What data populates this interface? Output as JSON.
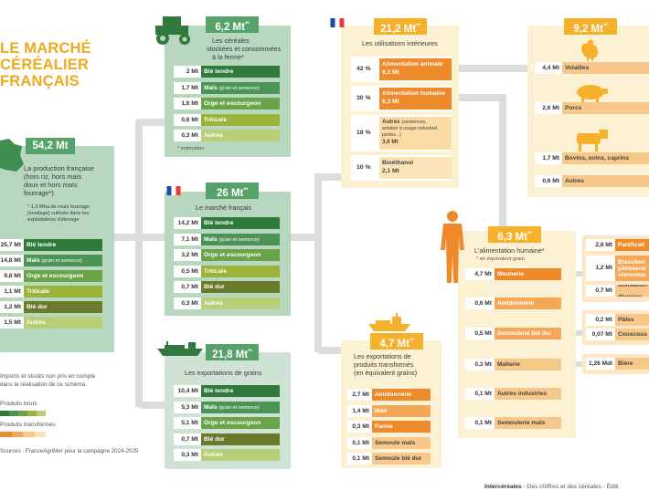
{
  "title": [
    "LE MARCHÉ",
    "CÉRÉALIER",
    "FRANÇAIS"
  ],
  "production": {
    "amount": "54,2 Mt",
    "desc": [
      "La production française",
      "(hors riz, hors maïs",
      "doux et hors maïs",
      "fourrage*)"
    ],
    "note": [
      "* 1,3 Mha de maïs fourrage",
      "(ensilage) cultivés dans les",
      "exploitations d'élevage"
    ],
    "rows": [
      {
        "value": "25,7 Mt",
        "label": "Blé tendre",
        "extra": ""
      },
      {
        "value": "14,8 Mt",
        "label": "Maïs",
        "extra": "(grain et semence)"
      },
      {
        "value": "9,8 Mt",
        "label": "Orge et escourgeon",
        "extra": ""
      },
      {
        "value": "1,1 Mt",
        "label": "Triticale",
        "extra": ""
      },
      {
        "value": "1,2 Mt",
        "label": "Blé dur",
        "extra": ""
      },
      {
        "value": "1,5 Mt",
        "label": "Autres",
        "extra": ""
      }
    ]
  },
  "legend": {
    "note": [
      "Imports et stocks non pris en compte",
      "dans la réalisation de ce schéma."
    ],
    "raw": "Produits bruts",
    "processed": "Produits transformés",
    "source": "Sources : FranceAgriMer pour la campagne 2024-2025"
  },
  "farm": {
    "amount": "6,2 Mt",
    "stars": "**",
    "desc": [
      "Les céréales",
      "stockées et consommées",
      "à la ferme*"
    ],
    "rows": [
      {
        "value": "2 Mt",
        "label": "Blé tendre",
        "extra": ""
      },
      {
        "value": "1,7 Mt",
        "label": "Maïs",
        "extra": "(grain et semence)"
      },
      {
        "value": "1,6 Mt",
        "label": "Orge et escourgeon",
        "extra": ""
      },
      {
        "value": "0,6 Mt",
        "label": "Triticale",
        "extra": ""
      },
      {
        "value": "0,3 Mt",
        "label": "Autres",
        "extra": ""
      }
    ],
    "note": "* estimation"
  },
  "market": {
    "amount": "26 Mt",
    "stars": "**",
    "desc": "Le marché français",
    "rows": [
      {
        "value": "14,2 Mt",
        "label": "Blé tendre",
        "extra": ""
      },
      {
        "value": "7,1 Mt",
        "label": "Maïs",
        "extra": "(grain et semence)"
      },
      {
        "value": "3,2 Mt",
        "label": "Orge et escourgeon",
        "extra": ""
      },
      {
        "value": "0,5 Mt",
        "label": "Triticale",
        "extra": ""
      },
      {
        "value": "0,7 Mt",
        "label": "Blé dur",
        "extra": ""
      },
      {
        "value": "0,3 Mt",
        "label": "Autres",
        "extra": ""
      }
    ]
  },
  "exports": {
    "amount": "21,8 Mt",
    "stars": "**",
    "desc": "Les exportations de grains",
    "rows": [
      {
        "value": "10,4 Mt",
        "label": "Blé tendre",
        "extra": ""
      },
      {
        "value": "5,3 Mt",
        "label": "Maïs",
        "extra": "(grain et semence)"
      },
      {
        "value": "5,1 Mt",
        "label": "Orge et escourgeon",
        "extra": ""
      },
      {
        "value": "0,7 Mt",
        "label": "Blé dur",
        "extra": ""
      },
      {
        "value": "0,3 Mt",
        "label": "Autres",
        "extra": ""
      }
    ]
  },
  "internal": {
    "amount": "21,2 Mt",
    "stars": "**",
    "desc": "Les utilisations intérieures",
    "rows": [
      {
        "pct": "42 %",
        "label": "Alimentation animale",
        "value": "9,2 Mt"
      },
      {
        "pct": "30 %",
        "label": "Alimentation humaine",
        "value": "6,3 Mt"
      },
      {
        "pct": "18 %",
        "label": "Autres",
        "extra": [
          "(semences,",
          "amidon à usage industriel,",
          "pertes...)"
        ],
        "value": "3,6 Mt"
      },
      {
        "pct": "10 %",
        "label": "Bioéthanol",
        "value": "2,1 Mt"
      }
    ]
  },
  "animal": {
    "amount": "9,2 Mt",
    "stars": "**",
    "rows": [
      {
        "value": "4,4 Mt",
        "label": "Volailles"
      },
      {
        "value": "2,6 Mt",
        "label": "Porcs"
      },
      {
        "value": "1,7 Mt",
        "label": "Bovins, ovins, caprins"
      },
      {
        "value": "0,6 Mt",
        "label": "Autres"
      }
    ]
  },
  "human": {
    "amount": "6,3 Mt",
    "stars": "**",
    "desc": "L'alimentation humaine*",
    "note": "* en équivalent grain",
    "rows": [
      {
        "value": "4,7 Mt",
        "label": "Meunerie"
      },
      {
        "value": "0,6 Mt",
        "label": "Amidonnerie"
      },
      {
        "value": "0,5 Mt",
        "label": "Semoulerie blé dur"
      },
      {
        "value": "0,3 Mt",
        "label": "Malterie"
      },
      {
        "value": "0,1 Mt",
        "label": "Autres industries"
      },
      {
        "value": "0,1 Mt",
        "label": "Semoulerie maïs"
      }
    ]
  },
  "processed_exports": {
    "amount": "4,7 Mt",
    "stars": "**",
    "desc": [
      "Les exportations de",
      "produits transformés",
      "(en équivalent grains)"
    ],
    "rows": [
      {
        "value": "2,7 Mt",
        "label": "Amidonnerie"
      },
      {
        "value": "1,4 Mt",
        "label": "Malt"
      },
      {
        "value": "0,3 Mt",
        "label": "Farine"
      },
      {
        "value": "0,1 Mt",
        "label": "Semoule maïs"
      },
      {
        "value": "0,1 Mt",
        "label": "Semoule blé dur"
      }
    ]
  },
  "milling": {
    "rows": [
      {
        "value": "2,8 Mt",
        "label": "Panificati"
      },
      {
        "value": "1,2 Mt",
        "label": [
          "Biscuiteri",
          "pâtisserie",
          "viennoise"
        ]
      },
      {
        "value": "0,7 Mt",
        "label": [
          "Utilisation",
          "diverses"
        ]
      }
    ]
  },
  "semoulerie": {
    "rows": [
      {
        "value": "0,2 Mt",
        "label": "Pâtes"
      },
      {
        "value": "0,07 Mt",
        "label": "Couscous"
      }
    ]
  },
  "malterie": {
    "value": "1,26 Mdl",
    "label": "Bière"
  },
  "footer": {
    "brand": "Intercéréales",
    "text": " - Des chiffres et des céréales - Éditi"
  },
  "colors": {
    "green": "#57a26b",
    "orange": "#f5b02c",
    "title": "#f0a81e"
  }
}
